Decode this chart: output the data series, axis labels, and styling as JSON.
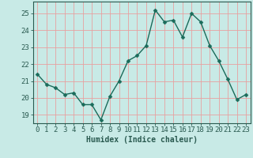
{
  "x": [
    0,
    1,
    2,
    3,
    4,
    5,
    6,
    7,
    8,
    9,
    10,
    11,
    12,
    13,
    14,
    15,
    16,
    17,
    18,
    19,
    20,
    21,
    22,
    23
  ],
  "y": [
    21.4,
    20.8,
    20.6,
    20.2,
    20.3,
    19.6,
    19.6,
    18.7,
    20.1,
    21.0,
    22.2,
    22.5,
    23.1,
    25.2,
    24.5,
    24.6,
    23.6,
    25.0,
    24.5,
    23.1,
    22.2,
    21.1,
    19.9,
    20.2
  ],
  "line_color": "#1a6b5a",
  "marker": "D",
  "marker_size": 2.5,
  "bg_color": "#c8eae6",
  "grid_color": "#e8a0a0",
  "axis_color": "#2a5a50",
  "xlabel": "Humidex (Indice chaleur)",
  "ylim": [
    18.5,
    25.7
  ],
  "xlim": [
    -0.5,
    23.5
  ],
  "yticks": [
    19,
    20,
    21,
    22,
    23,
    24,
    25
  ],
  "xticks": [
    0,
    1,
    2,
    3,
    4,
    5,
    6,
    7,
    8,
    9,
    10,
    11,
    12,
    13,
    14,
    15,
    16,
    17,
    18,
    19,
    20,
    21,
    22,
    23
  ],
  "label_fontsize": 7,
  "tick_fontsize": 6.5
}
